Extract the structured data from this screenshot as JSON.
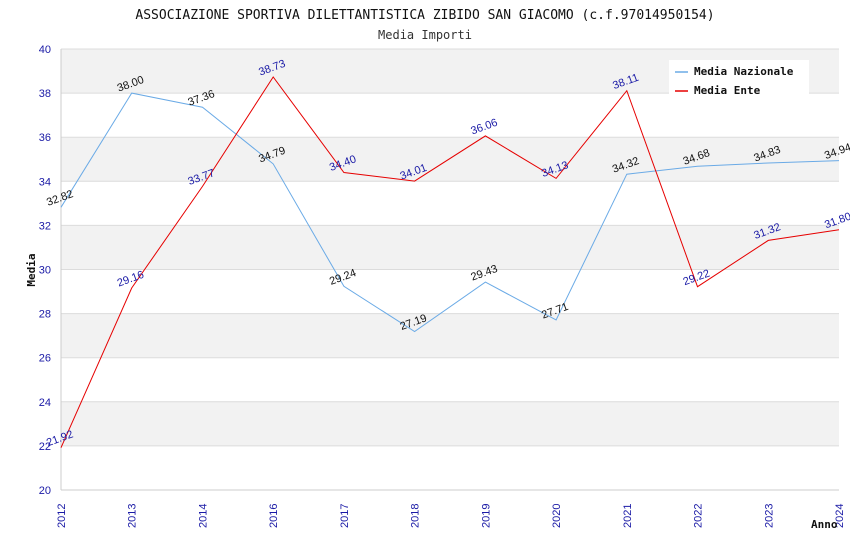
{
  "chart_data": {
    "type": "line",
    "title": "ASSOCIAZIONE SPORTIVA DILETTANTISTICA ZIBIDO SAN GIACOMO (c.f.97014950154)",
    "subtitle": "Media Importi",
    "xlabel": "Anno",
    "ylabel": "Media",
    "ylim": [
      20,
      40
    ],
    "ytick_step": 2,
    "grid": true,
    "legend_position": "top-right",
    "categories": [
      "2012",
      "2013",
      "2014",
      "2016",
      "2017",
      "2018",
      "2019",
      "2020",
      "2021",
      "2022",
      "2023",
      "2024"
    ],
    "yticks": [
      "20",
      "22",
      "24",
      "26",
      "28",
      "30",
      "32",
      "34",
      "36",
      "38",
      "40"
    ],
    "series": [
      {
        "name": "Media Nazionale",
        "color": "#6aaae6",
        "label_color": "#111111",
        "values": [
          32.82,
          38.0,
          37.36,
          34.79,
          29.24,
          27.19,
          29.43,
          27.71,
          34.32,
          34.68,
          34.83,
          34.94
        ],
        "labels": [
          "32.82",
          "38.00",
          "37.36",
          "34.79",
          "29.24",
          "27.19",
          "29.43",
          "27.71",
          "34.32",
          "34.68",
          "34.83",
          "34.94"
        ]
      },
      {
        "name": "Media Ente",
        "color": "#e60000",
        "label_color": "#1a1aa6",
        "values": [
          21.92,
          29.16,
          33.77,
          38.73,
          34.4,
          34.01,
          36.06,
          34.13,
          38.11,
          29.22,
          31.32,
          31.8
        ],
        "labels": [
          "21.92",
          "29.16",
          "33.77",
          "38.73",
          "34.40",
          "34.01",
          "36.06",
          "34.13",
          "38.11",
          "29.22",
          "31.32",
          "31.80"
        ]
      }
    ]
  }
}
